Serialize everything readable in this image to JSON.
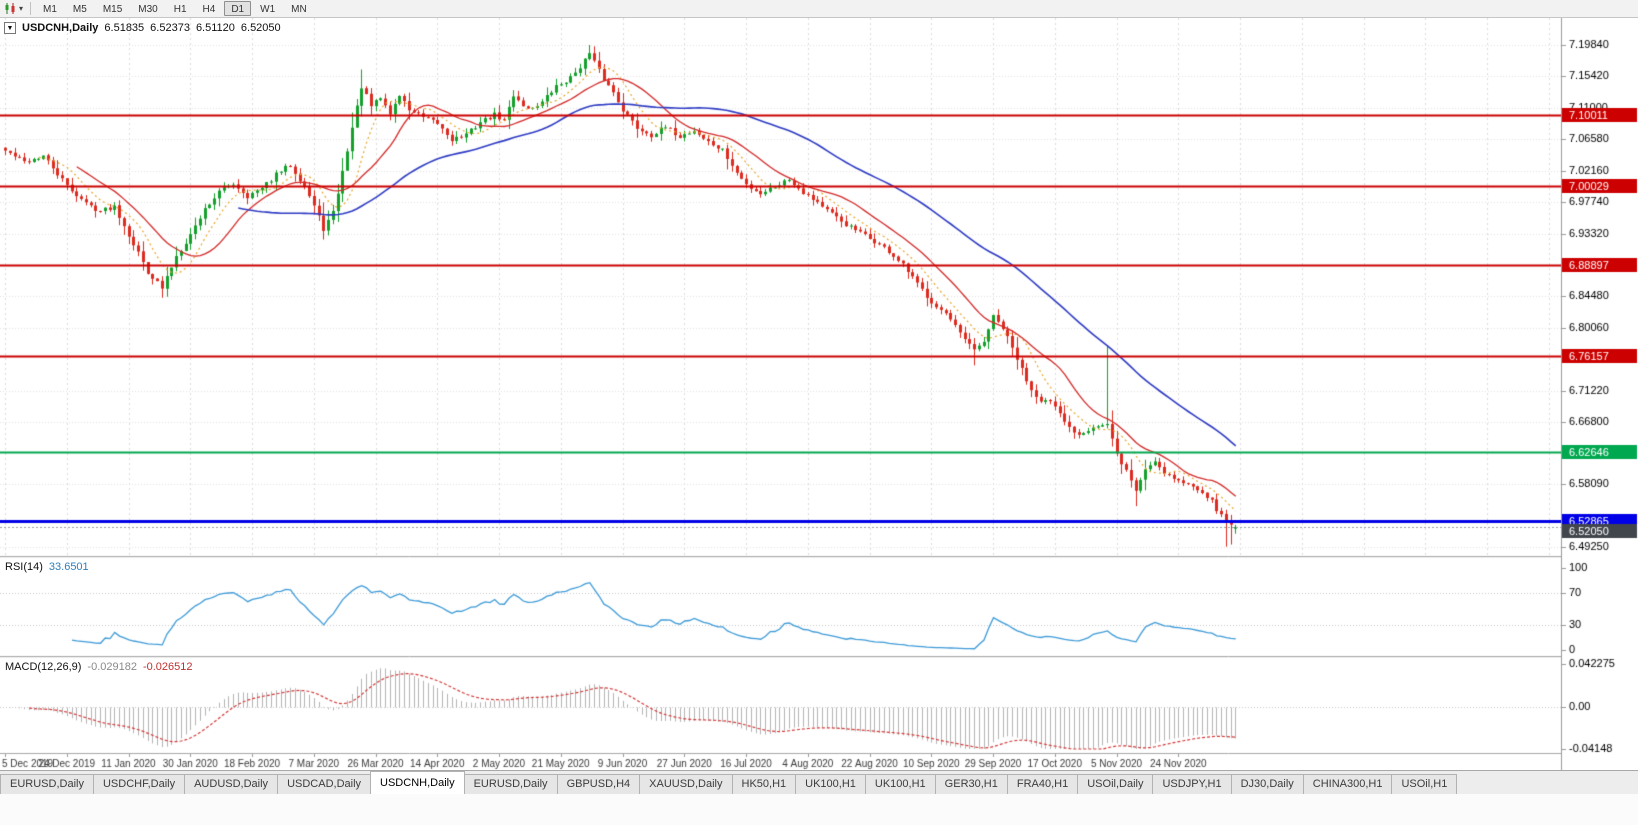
{
  "toolbar": {
    "chart_type_icon": "candlestick-chart-icon",
    "dropdown_icon": "caret-down-icon",
    "timeframes": [
      "M1",
      "M5",
      "M15",
      "M30",
      "H1",
      "H4",
      "D1",
      "W1",
      "MN"
    ],
    "active_timeframe": "D1"
  },
  "chart": {
    "title": "USDCNH,Daily",
    "quote": {
      "open": "6.51835",
      "high": "6.52373",
      "low": "6.51120",
      "close": "6.52050"
    }
  },
  "rsi_panel": {
    "label": "RSI(14)",
    "value": "33.6501",
    "ticks": [
      {
        "label": "100",
        "value": 100
      },
      {
        "label": "70",
        "value": 70
      },
      {
        "label": "30",
        "value": 30
      },
      {
        "label": "0",
        "value": 0
      }
    ]
  },
  "macd_panel": {
    "label": "MACD(12,26,9)",
    "value_macd": "-0.029182",
    "value_signal": "-0.026512",
    "ticks": [
      {
        "label": "0.042275",
        "value": 0.042275
      },
      {
        "label": "0.00",
        "value": 0
      },
      {
        "label": "-0.04148",
        "value": -0.04148
      }
    ]
  },
  "tabs": {
    "active_index": 4,
    "items": [
      "EURUSD,Daily",
      "USDCHF,Daily",
      "AUDUSD,Daily",
      "USDCAD,Daily",
      "USDCNH,Daily",
      "EURUSD,Daily",
      "GBPUSD,H4",
      "XAUUSD,Daily",
      "HK50,H1",
      "UK100,H1",
      "UK100,H1",
      "GER30,H1",
      "FRA40,H1",
      "USOil,Daily",
      "USDJPY,H1",
      "DJ30,Daily",
      "CHINA300,H1",
      "USOil,H1"
    ]
  },
  "colors": {
    "candle_up": "#15a02c",
    "candle_down": "#dc2b20",
    "ma_fast": "#e8a62c",
    "ma_mid": "#d42a2a",
    "ma_slow": "#2f3cc4",
    "rsi_line": "#3e9bd8",
    "macd_hist": "#b4b4b4",
    "macd_signal": "#d43a3a",
    "current_price_bg": "#41464d",
    "grid": "#dcdcdc",
    "axis_text": "#000000",
    "date_text": "#3a3a3a"
  },
  "chart_data": {
    "type": "candlestick",
    "symbol": "USDCNH",
    "timeframe": "Daily",
    "num_candles": 260,
    "x_first_candle": 5,
    "candle_spacing": 4.75,
    "grid_index_step": 13,
    "y_range": [
      6.4799,
      7.2364
    ],
    "price_ticks": [
      {
        "label": "7.19840",
        "value": 7.1984
      },
      {
        "label": "7.15420",
        "value": 7.1542
      },
      {
        "label": "7.11000",
        "value": 7.11
      },
      {
        "label": "7.06580",
        "value": 7.0658
      },
      {
        "label": "7.02160",
        "value": 7.0216
      },
      {
        "label": "6.97740",
        "value": 6.9774
      },
      {
        "label": "6.93320",
        "value": 6.9332
      },
      {
        "label": "6.84480",
        "value": 6.8448
      },
      {
        "label": "6.80060",
        "value": 6.8006
      },
      {
        "label": "6.71220",
        "value": 6.7122
      },
      {
        "label": "6.66800",
        "value": 6.668
      },
      {
        "label": "6.58090",
        "value": 6.5809
      },
      {
        "label": "6.49250",
        "value": 6.4925
      }
    ],
    "levels": [
      {
        "label": "7.10011",
        "value": 7.10011,
        "color": "#cc0000",
        "width": 2
      },
      {
        "label": "7.00029",
        "value": 7.00029,
        "color": "#cc0000",
        "width": 2
      },
      {
        "label": "6.88897",
        "value": 6.88897,
        "color": "#cc0000",
        "width": 2
      },
      {
        "label": "6.76157",
        "value": 6.76157,
        "color": "#cc0000",
        "width": 2
      },
      {
        "label": "6.62646",
        "value": 6.62646,
        "color": "#00a84f",
        "width": 2
      },
      {
        "label": "6.52865",
        "value": 6.52865,
        "color": "#0000e6",
        "width": 3
      }
    ],
    "current_price": {
      "label": "6.52050",
      "value": 6.5205
    },
    "date_labels": [
      {
        "index": 0,
        "label": "5 Dec 2019"
      },
      {
        "index": 13,
        "label": "24 Dec 2019"
      },
      {
        "index": 26,
        "label": "11 Jan 2020"
      },
      {
        "index": 39,
        "label": "30 Jan 2020"
      },
      {
        "index": 52,
        "label": "18 Feb 2020"
      },
      {
        "index": 65,
        "label": "7 Mar 2020"
      },
      {
        "index": 78,
        "label": "26 Mar 2020"
      },
      {
        "index": 91,
        "label": "14 Apr 2020"
      },
      {
        "index": 104,
        "label": "2 May 2020"
      },
      {
        "index": 117,
        "label": "21 May 2020"
      },
      {
        "index": 130,
        "label": "9 Jun 2020"
      },
      {
        "index": 143,
        "label": "27 Jun 2020"
      },
      {
        "index": 156,
        "label": "16 Jul 2020"
      },
      {
        "index": 169,
        "label": "4 Aug 2020"
      },
      {
        "index": 182,
        "label": "22 Aug 2020"
      },
      {
        "index": 195,
        "label": "10 Sep 2020"
      },
      {
        "index": 208,
        "label": "29 Sep 2020"
      },
      {
        "index": 221,
        "label": "17 Oct 2020"
      },
      {
        "index": 234,
        "label": "5 Nov 2020"
      },
      {
        "index": 247,
        "label": "24 Nov 2020"
      }
    ],
    "price_anchors": [
      [
        0,
        7.05
      ],
      [
        4,
        7.034
      ],
      [
        8,
        7.042
      ],
      [
        13,
        7.0
      ],
      [
        17,
        6.976
      ],
      [
        20,
        6.965
      ],
      [
        23,
        6.972
      ],
      [
        26,
        6.932
      ],
      [
        30,
        6.88
      ],
      [
        33,
        6.856
      ],
      [
        36,
        6.902
      ],
      [
        39,
        6.932
      ],
      [
        42,
        6.968
      ],
      [
        45,
        6.992
      ],
      [
        48,
        7.004
      ],
      [
        51,
        6.986
      ],
      [
        54,
        6.996
      ],
      [
        57,
        7.016
      ],
      [
        60,
        7.03
      ],
      [
        63,
        7.0
      ],
      [
        65,
        6.972
      ],
      [
        67,
        6.94
      ],
      [
        69,
        6.962
      ],
      [
        71,
        7.02
      ],
      [
        73,
        7.082
      ],
      [
        75,
        7.14
      ],
      [
        77,
        7.112
      ],
      [
        79,
        7.124
      ],
      [
        81,
        7.102
      ],
      [
        83,
        7.128
      ],
      [
        85,
        7.108
      ],
      [
        88,
        7.096
      ],
      [
        91,
        7.088
      ],
      [
        94,
        7.066
      ],
      [
        97,
        7.072
      ],
      [
        100,
        7.09
      ],
      [
        103,
        7.1
      ],
      [
        105,
        7.092
      ],
      [
        107,
        7.128
      ],
      [
        110,
        7.108
      ],
      [
        113,
        7.118
      ],
      [
        116,
        7.14
      ],
      [
        119,
        7.152
      ],
      [
        123,
        7.186
      ],
      [
        126,
        7.15
      ],
      [
        128,
        7.132
      ],
      [
        130,
        7.108
      ],
      [
        133,
        7.082
      ],
      [
        136,
        7.072
      ],
      [
        139,
        7.082
      ],
      [
        142,
        7.07
      ],
      [
        145,
        7.078
      ],
      [
        148,
        7.062
      ],
      [
        151,
        7.05
      ],
      [
        154,
        7.018
      ],
      [
        156,
        7.002
      ],
      [
        159,
        6.99
      ],
      [
        162,
        7.0
      ],
      [
        165,
        7.01
      ],
      [
        168,
        6.992
      ],
      [
        171,
        6.978
      ],
      [
        174,
        6.96
      ],
      [
        177,
        6.946
      ],
      [
        180,
        6.934
      ],
      [
        183,
        6.922
      ],
      [
        186,
        6.908
      ],
      [
        189,
        6.888
      ],
      [
        192,
        6.862
      ],
      [
        195,
        6.838
      ],
      [
        198,
        6.82
      ],
      [
        201,
        6.792
      ],
      [
        204,
        6.768
      ],
      [
        206,
        6.782
      ],
      [
        208,
        6.816
      ],
      [
        210,
        6.8
      ],
      [
        212,
        6.772
      ],
      [
        214,
        6.742
      ],
      [
        216,
        6.714
      ],
      [
        218,
        6.7
      ],
      [
        220,
        6.696
      ],
      [
        222,
        6.678
      ],
      [
        224,
        6.66
      ],
      [
        226,
        6.652
      ],
      [
        229,
        6.662
      ],
      [
        232,
        6.664
      ],
      [
        234,
        6.622
      ],
      [
        236,
        6.6
      ],
      [
        238,
        6.572
      ],
      [
        240,
        6.602
      ],
      [
        242,
        6.614
      ],
      [
        244,
        6.598
      ],
      [
        246,
        6.59
      ],
      [
        248,
        6.582
      ],
      [
        250,
        6.578
      ],
      [
        252,
        6.572
      ],
      [
        254,
        6.556
      ],
      [
        256,
        6.536
      ],
      [
        258,
        6.524
      ],
      [
        259,
        6.5205
      ]
    ],
    "special_candles": [
      {
        "i": 33,
        "low": 6.843
      },
      {
        "i": 75,
        "high": 7.164
      },
      {
        "i": 123,
        "high": 7.1984
      },
      {
        "i": 204,
        "low": 6.748
      },
      {
        "i": 232,
        "high": 6.776
      },
      {
        "i": 238,
        "low": 6.55
      },
      {
        "i": 257,
        "low": 6.493
      },
      {
        "i": 258,
        "low": 6.496
      }
    ],
    "last_candle": {
      "open": 6.51835,
      "high": 6.52373,
      "low": 6.5112,
      "close": 6.5205
    },
    "moving_averages": [
      {
        "period": 8,
        "style": "dotted",
        "color_key": "ma_fast"
      },
      {
        "period": 16,
        "style": "solid",
        "color_key": "ma_mid"
      },
      {
        "period": 50,
        "style": "solid",
        "color_key": "ma_slow"
      }
    ],
    "rsi": {
      "period": 14,
      "levels": [
        70,
        30
      ]
    },
    "macd": {
      "fast": 12,
      "slow": 26,
      "signal": 9,
      "scale_max": 0.042275,
      "scale_min": -0.04148
    }
  }
}
